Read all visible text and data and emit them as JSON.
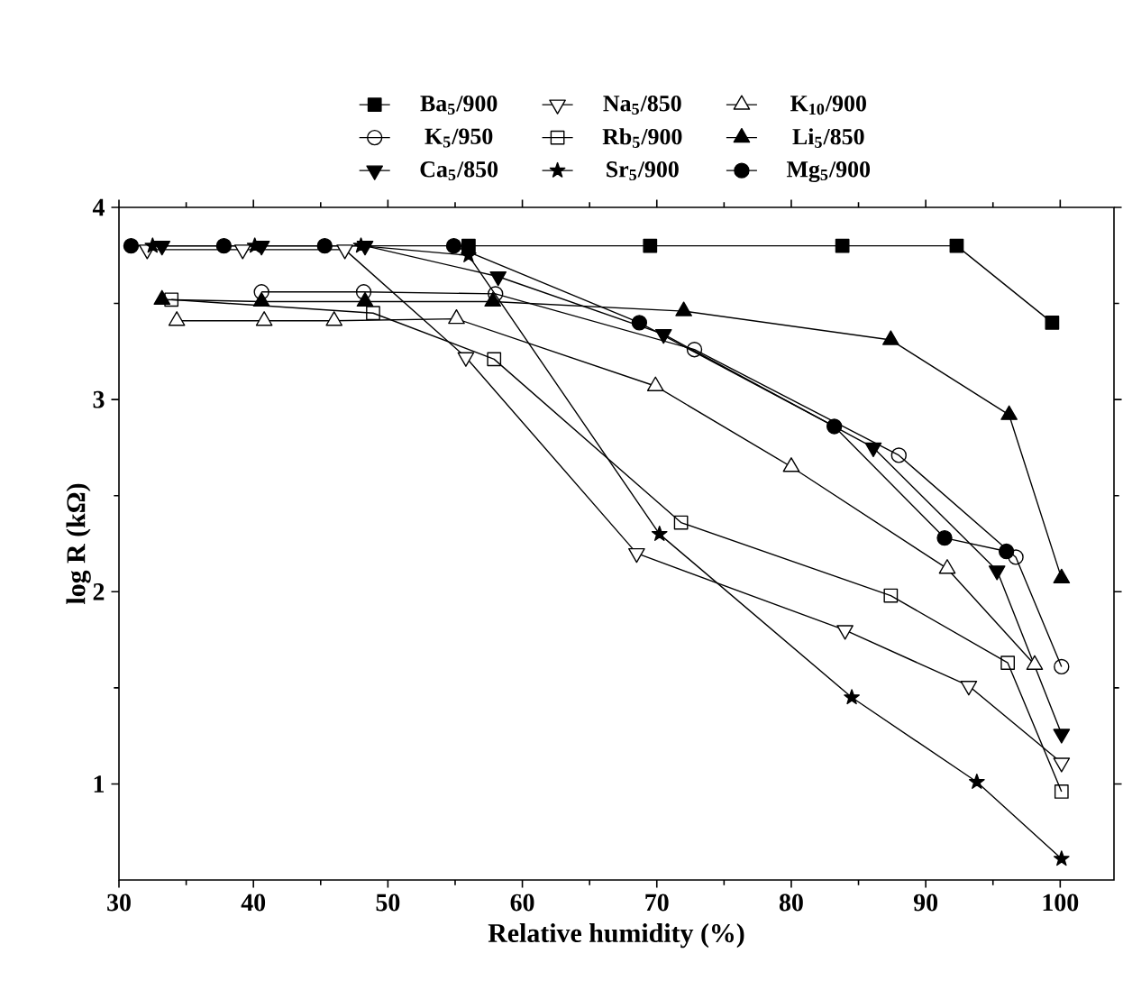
{
  "chart_data": {
    "type": "line",
    "xlabel": "Relative humidity (%)",
    "ylabel": "log R (kΩ)",
    "xlim": [
      30,
      104
    ],
    "ylim": [
      0.5,
      4
    ],
    "xticks": [
      30,
      40,
      50,
      60,
      70,
      80,
      90,
      100
    ],
    "yticks": [
      1,
      2,
      3,
      4
    ],
    "legend": "top",
    "grid": false,
    "line_style": "solid",
    "series": [
      {
        "name": "Ba$_{5}$/900",
        "color": "#000000",
        "marker": "square",
        "x": [
          56.0,
          69.5,
          83.8,
          92.3,
          99.4
        ],
        "values": [
          3.8,
          3.8,
          3.8,
          3.8,
          3.4
        ]
      },
      {
        "name": "Na$_{5}$/850",
        "color": "#000000",
        "marker": "triangle_down_open",
        "x": [
          32.1,
          39.2,
          46.8,
          55.8,
          68.5,
          84.0,
          93.2,
          100.1
        ],
        "values": [
          3.78,
          3.78,
          3.78,
          3.22,
          2.2,
          1.8,
          1.51,
          1.11
        ]
      },
      {
        "name": "K$_{10}$/900",
        "color": "#000000",
        "marker": "triangle_open",
        "x": [
          34.3,
          40.8,
          46.0,
          55.1,
          69.9,
          80.0,
          91.6,
          98.1
        ],
        "values": [
          3.41,
          3.41,
          3.41,
          3.42,
          3.07,
          2.65,
          2.12,
          1.62
        ]
      },
      {
        "name": "K$_{5}$/950",
        "color": "#000000",
        "marker": "circle_open",
        "x": [
          40.6,
          48.2,
          58.0,
          72.8,
          88.0,
          96.7,
          100.1
        ],
        "values": [
          3.56,
          3.56,
          3.55,
          3.26,
          2.71,
          2.18,
          1.61
        ]
      },
      {
        "name": "Rb$_{5}$/900",
        "color": "#000000",
        "marker": "square_open",
        "x": [
          33.9,
          48.9,
          57.9,
          71.8,
          87.4,
          96.1,
          100.1
        ],
        "values": [
          3.52,
          3.45,
          3.21,
          2.36,
          1.98,
          1.63,
          0.96
        ]
      },
      {
        "name": "Li$_{5}$/850",
        "color": "#000000",
        "marker": "triangle",
        "x": [
          33.2,
          40.6,
          48.3,
          57.8,
          72.0,
          87.4,
          96.2,
          100.1
        ],
        "values": [
          3.52,
          3.51,
          3.51,
          3.51,
          3.46,
          3.31,
          2.92,
          2.07
        ]
      },
      {
        "name": "Ca$_{5}$/850",
        "color": "#000000",
        "marker": "triangle_down",
        "x": [
          33.2,
          40.6,
          48.3,
          58.2,
          70.5,
          86.1,
          95.3,
          100.1
        ],
        "values": [
          3.8,
          3.8,
          3.8,
          3.64,
          3.34,
          2.75,
          2.11,
          1.26
        ]
      },
      {
        "name": "Sr$_{5}$/900",
        "color": "#000000",
        "marker": "star",
        "x": [
          32.5,
          40.1,
          48.0,
          56.0,
          70.2,
          84.5,
          93.8,
          100.1
        ],
        "values": [
          3.8,
          3.8,
          3.8,
          3.75,
          2.3,
          1.45,
          1.01,
          0.61
        ]
      },
      {
        "name": "Mg$_{5}$/900",
        "color": "#000000",
        "marker": "circle",
        "x": [
          30.9,
          37.8,
          45.3,
          54.9,
          68.7,
          83.2,
          91.4,
          96.0
        ],
        "values": [
          3.8,
          3.8,
          3.8,
          3.8,
          3.4,
          2.86,
          2.28,
          2.21
        ]
      }
    ]
  }
}
